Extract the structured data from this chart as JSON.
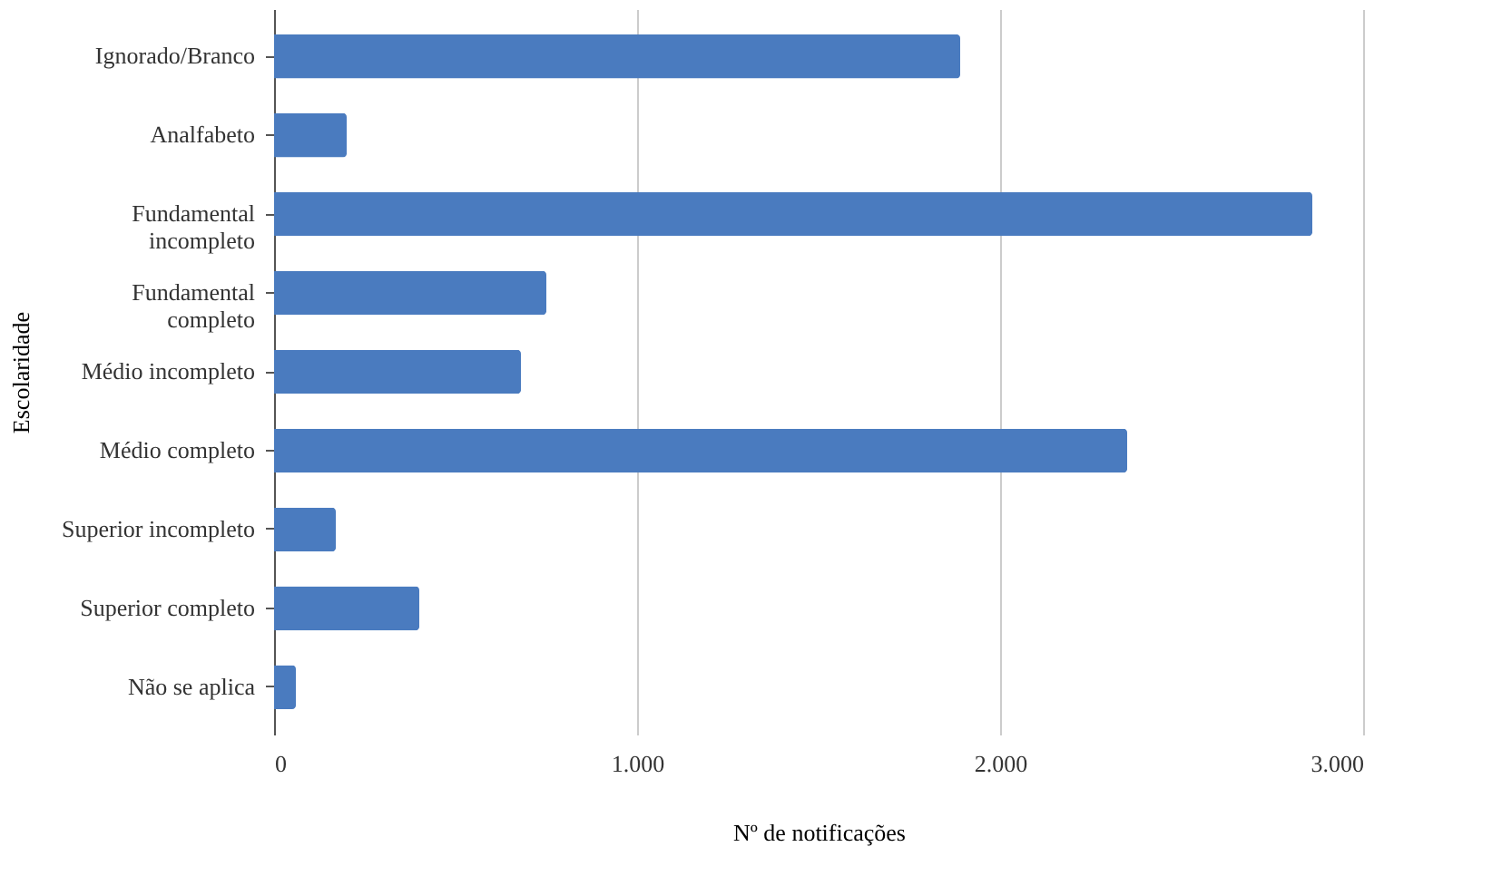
{
  "chart_data": {
    "type": "bar",
    "orientation": "horizontal",
    "categories": [
      "Ignorado/Branco",
      "Analfabeto",
      "Fundamental\nincompleto",
      "Fundamental\ncompleto",
      "Médio incompleto",
      "Médio completo",
      "Superior incompleto",
      "Superior completo",
      "Não se aplica"
    ],
    "values": [
      1890,
      200,
      2860,
      750,
      680,
      2350,
      170,
      400,
      60
    ],
    "color": "#4a7bbf",
    "xlabel": "Nº de notificações",
    "ylabel": "Escolaridade",
    "xlim": [
      0,
      3000
    ],
    "xticks": [
      {
        "value": 0,
        "label": "0"
      },
      {
        "value": 1000,
        "label": "1.000"
      },
      {
        "value": 2000,
        "label": "2.000"
      },
      {
        "value": 3000,
        "label": "3.000"
      }
    ],
    "grid": "x"
  }
}
